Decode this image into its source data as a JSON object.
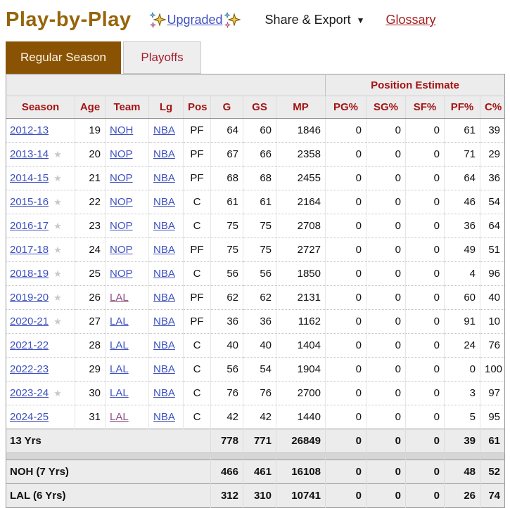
{
  "header": {
    "title": "Play-by-Play",
    "upgraded_label": "Upgraded",
    "share_export_label": "Share & Export",
    "share_export_caret": "▼",
    "glossary_label": "Glossary"
  },
  "tabs": {
    "regular_season": "Regular Season",
    "playoffs": "Playoffs"
  },
  "table": {
    "group_header": "Position Estimate",
    "columns": [
      "Season",
      "Age",
      "Team",
      "Lg",
      "Pos",
      "G",
      "GS",
      "MP",
      "PG%",
      "SG%",
      "SF%",
      "PF%",
      "C%"
    ],
    "rows": [
      {
        "season": "2012-13",
        "star": false,
        "age": 19,
        "team": "NOH",
        "team_visited": false,
        "lg": "NBA",
        "pos": "PF",
        "g": 64,
        "gs": 60,
        "mp": 1846,
        "pg": 0,
        "sg": 0,
        "sf": 0,
        "pf": 61,
        "c": 39
      },
      {
        "season": "2013-14",
        "star": true,
        "age": 20,
        "team": "NOP",
        "team_visited": false,
        "lg": "NBA",
        "pos": "PF",
        "g": 67,
        "gs": 66,
        "mp": 2358,
        "pg": 0,
        "sg": 0,
        "sf": 0,
        "pf": 71,
        "c": 29
      },
      {
        "season": "2014-15",
        "star": true,
        "age": 21,
        "team": "NOP",
        "team_visited": false,
        "lg": "NBA",
        "pos": "PF",
        "g": 68,
        "gs": 68,
        "mp": 2455,
        "pg": 0,
        "sg": 0,
        "sf": 0,
        "pf": 64,
        "c": 36
      },
      {
        "season": "2015-16",
        "star": true,
        "age": 22,
        "team": "NOP",
        "team_visited": false,
        "lg": "NBA",
        "pos": "C",
        "g": 61,
        "gs": 61,
        "mp": 2164,
        "pg": 0,
        "sg": 0,
        "sf": 0,
        "pf": 46,
        "c": 54
      },
      {
        "season": "2016-17",
        "star": true,
        "age": 23,
        "team": "NOP",
        "team_visited": false,
        "lg": "NBA",
        "pos": "C",
        "g": 75,
        "gs": 75,
        "mp": 2708,
        "pg": 0,
        "sg": 0,
        "sf": 0,
        "pf": 36,
        "c": 64
      },
      {
        "season": "2017-18",
        "star": true,
        "age": 24,
        "team": "NOP",
        "team_visited": false,
        "lg": "NBA",
        "pos": "PF",
        "g": 75,
        "gs": 75,
        "mp": 2727,
        "pg": 0,
        "sg": 0,
        "sf": 0,
        "pf": 49,
        "c": 51
      },
      {
        "season": "2018-19",
        "star": true,
        "age": 25,
        "team": "NOP",
        "team_visited": false,
        "lg": "NBA",
        "pos": "C",
        "g": 56,
        "gs": 56,
        "mp": 1850,
        "pg": 0,
        "sg": 0,
        "sf": 0,
        "pf": 4,
        "c": 96
      },
      {
        "season": "2019-20",
        "star": true,
        "age": 26,
        "team": "LAL",
        "team_visited": true,
        "lg": "NBA",
        "pos": "PF",
        "g": 62,
        "gs": 62,
        "mp": 2131,
        "pg": 0,
        "sg": 0,
        "sf": 0,
        "pf": 60,
        "c": 40
      },
      {
        "season": "2020-21",
        "star": true,
        "age": 27,
        "team": "LAL",
        "team_visited": false,
        "lg": "NBA",
        "pos": "PF",
        "g": 36,
        "gs": 36,
        "mp": 1162,
        "pg": 0,
        "sg": 0,
        "sf": 0,
        "pf": 91,
        "c": 10
      },
      {
        "season": "2021-22",
        "star": false,
        "age": 28,
        "team": "LAL",
        "team_visited": false,
        "lg": "NBA",
        "pos": "C",
        "g": 40,
        "gs": 40,
        "mp": 1404,
        "pg": 0,
        "sg": 0,
        "sf": 0,
        "pf": 24,
        "c": 76
      },
      {
        "season": "2022-23",
        "star": false,
        "age": 29,
        "team": "LAL",
        "team_visited": false,
        "lg": "NBA",
        "pos": "C",
        "g": 56,
        "gs": 54,
        "mp": 1904,
        "pg": 0,
        "sg": 0,
        "sf": 0,
        "pf": 0,
        "c": 100
      },
      {
        "season": "2023-24",
        "star": true,
        "age": 30,
        "team": "LAL",
        "team_visited": false,
        "lg": "NBA",
        "pos": "C",
        "g": 76,
        "gs": 76,
        "mp": 2700,
        "pg": 0,
        "sg": 0,
        "sf": 0,
        "pf": 3,
        "c": 97
      },
      {
        "season": "2024-25",
        "star": false,
        "age": 31,
        "team": "LAL",
        "team_visited": true,
        "lg": "NBA",
        "pos": "C",
        "g": 42,
        "gs": 42,
        "mp": 1440,
        "pg": 0,
        "sg": 0,
        "sf": 0,
        "pf": 5,
        "c": 95
      }
    ],
    "career": {
      "label": "13 Yrs",
      "g": 778,
      "gs": 771,
      "mp": 26849,
      "pg": 0,
      "sg": 0,
      "sf": 0,
      "pf": 39,
      "c": 61
    },
    "team_totals": [
      {
        "label": "NOH (7 Yrs)",
        "g": 466,
        "gs": 461,
        "mp": 16108,
        "pg": 0,
        "sg": 0,
        "sf": 0,
        "pf": 48,
        "c": 52
      },
      {
        "label": "LAL (6 Yrs)",
        "g": 312,
        "gs": 310,
        "mp": 10741,
        "pg": 0,
        "sg": 0,
        "sf": 0,
        "pf": 26,
        "c": 74
      }
    ]
  },
  "colors": {
    "title_brown": "#96640a",
    "active_tab_brown": "#8a5304",
    "header_red": "#a31414",
    "glossary_red": "#a31e1e",
    "link_blue": "#3e51c1",
    "visited_purple": "#8f4f84",
    "header_gray": "#ececec",
    "star_gray": "#c9c9c9"
  }
}
